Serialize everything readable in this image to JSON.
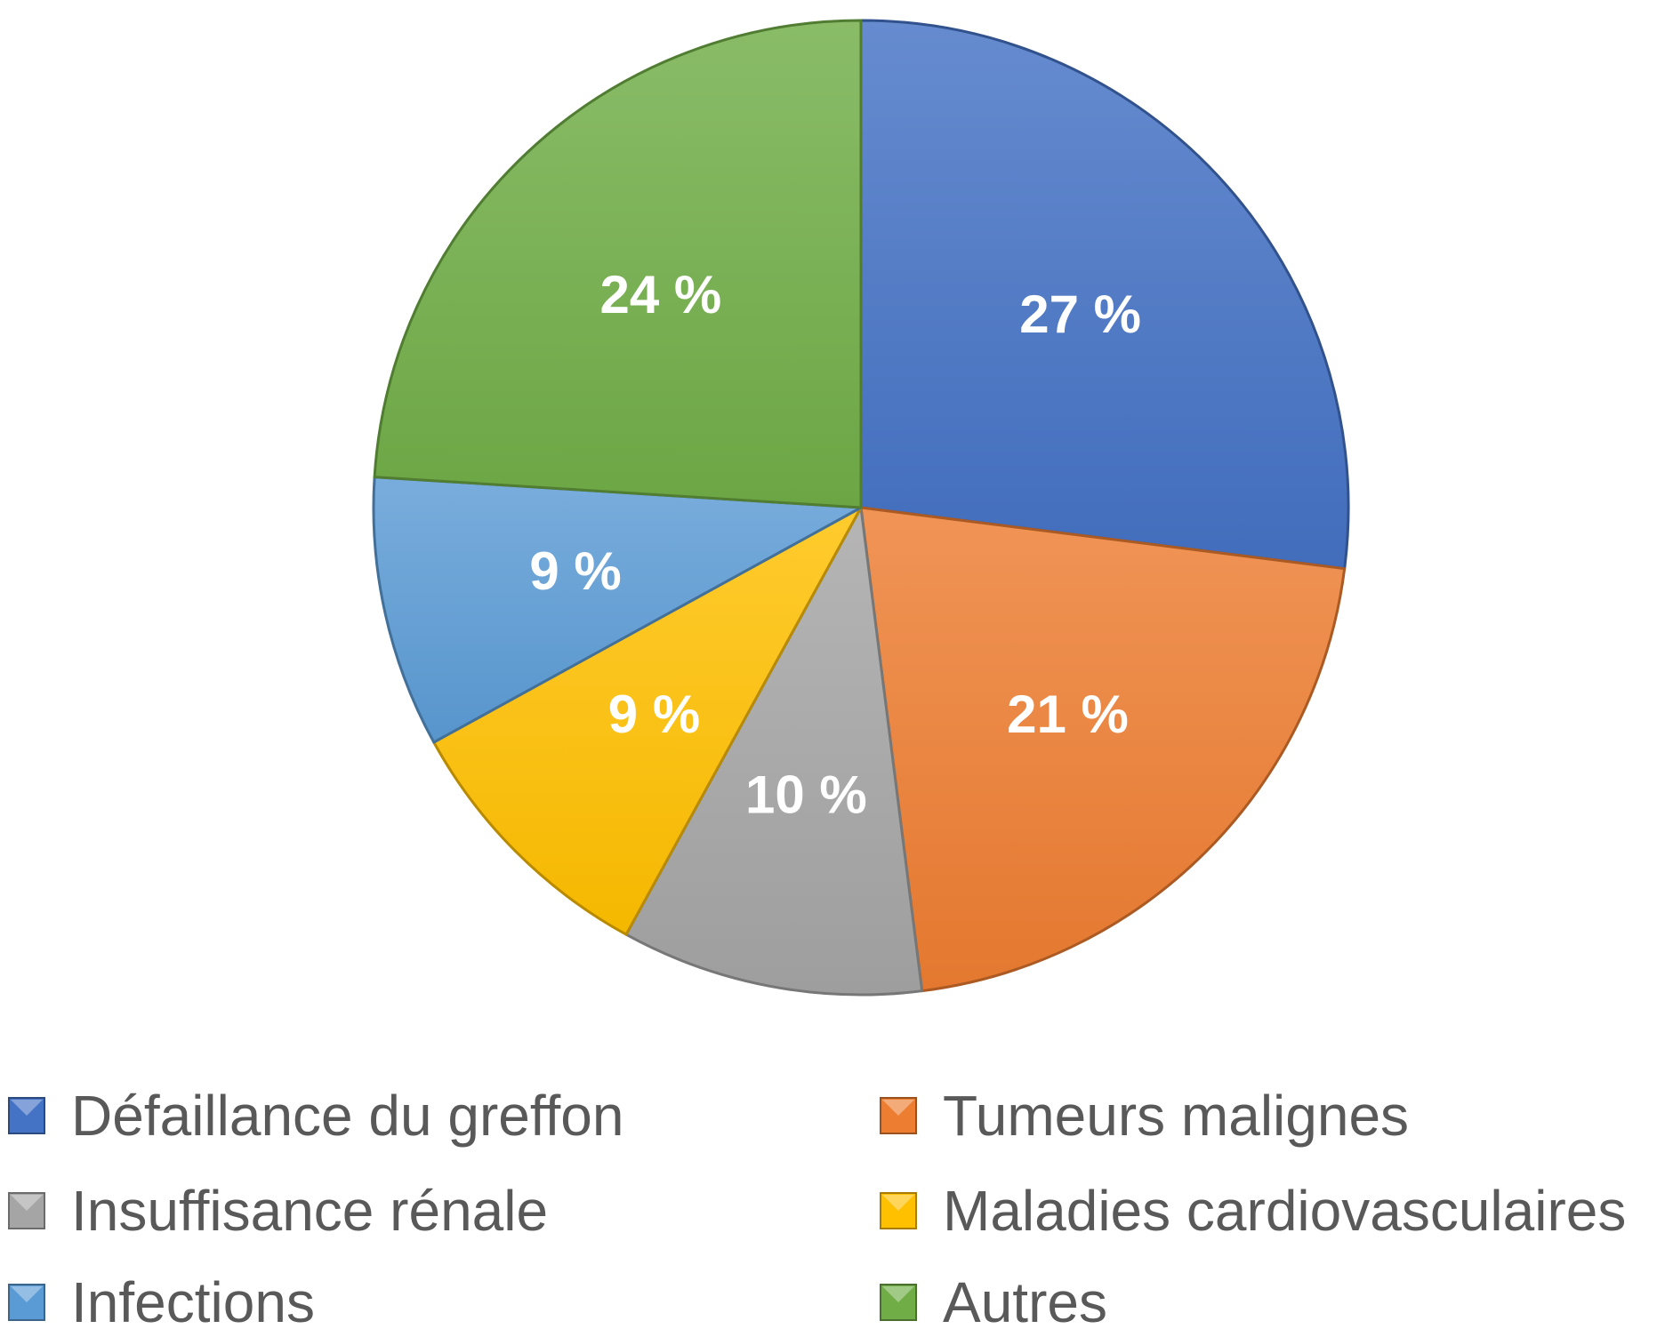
{
  "chart_data": {
    "type": "pie",
    "title": "",
    "slices": [
      {
        "label": "Défaillance du greffon",
        "value": 27,
        "display": "27 %",
        "color": "#4472C4"
      },
      {
        "label": "Tumeurs malignes",
        "value": 21,
        "display": "21 %",
        "color": "#ED7D31"
      },
      {
        "label": "Insuffisance rénale",
        "value": 10,
        "display": "10 %",
        "color": "#A5A5A5"
      },
      {
        "label": "Maladies cardiovasculaires",
        "value": 9,
        "display": "9 %",
        "color": "#FFC000"
      },
      {
        "label": "Infections",
        "value": 9,
        "display": "9 %",
        "color": "#5B9BD5"
      },
      {
        "label": "Autres",
        "value": 24,
        "display": "24 %",
        "color": "#70AD47"
      }
    ],
    "start_angle_deg": 0,
    "direction": "clockwise",
    "legend": {
      "position": "bottom",
      "columns": 2,
      "order": [
        "Défaillance du greffon",
        "Tumeurs malignes",
        "Insuffisance rénale",
        "Maladies cardiovasculaires",
        "Infections",
        "Autres"
      ]
    }
  }
}
